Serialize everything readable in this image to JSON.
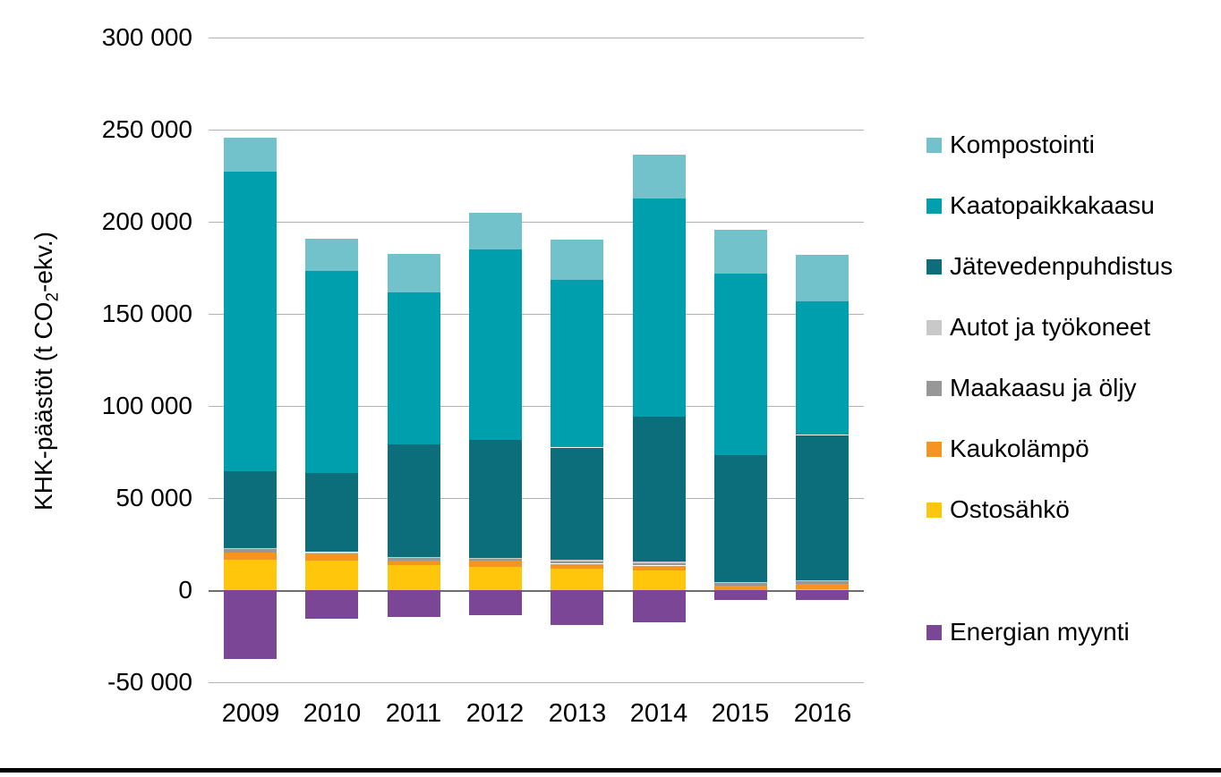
{
  "chart_data": {
    "type": "bar",
    "stacked": true,
    "title": "",
    "xlabel": "",
    "ylabel": "KHK-päästöt (t CO₂-ekv.)",
    "ylabel_parts": {
      "prefix": "KHK-päästöt (t CO",
      "sub": "2",
      "suffix": "-ekv.)"
    },
    "categories": [
      "2009",
      "2010",
      "2011",
      "2012",
      "2013",
      "2014",
      "2015",
      "2016"
    ],
    "series": [
      {
        "name": "Ostosähkö",
        "color": "#FFC60B",
        "values": [
          16700,
          15800,
          13800,
          12400,
          11900,
          10900,
          400,
          500
        ]
      },
      {
        "name": "Kaukolämpö",
        "color": "#F5941F",
        "values": [
          3900,
          4000,
          2400,
          3400,
          2400,
          2400,
          2200,
          2700
        ]
      },
      {
        "name": "Maakaasu ja öljy",
        "color": "#979797",
        "values": [
          1700,
          500,
          1300,
          1000,
          1600,
          1600,
          1300,
          1600
        ]
      },
      {
        "name": "Autot ja työkoneet",
        "color": "#C9C9C9",
        "values": [
          700,
          300,
          600,
          500,
          800,
          800,
          600,
          800
        ]
      },
      {
        "name": "Jätevedenpuhdistus",
        "color": "#0D6E7B",
        "values": [
          41700,
          42800,
          61200,
          64100,
          60700,
          78600,
          68900,
          78600
        ]
      },
      {
        "name": "Kaatopaikkakaasu",
        "color": "#009FAE",
        "values": [
          162600,
          110200,
          82500,
          103400,
          91300,
          118500,
          98600,
          72400
        ]
      },
      {
        "name": "Kompostointi",
        "color": "#72C2CC",
        "values": [
          18500,
          17400,
          20800,
          19900,
          21800,
          23700,
          23800,
          25200
        ]
      },
      {
        "name": "Energian myynti",
        "color": "#7C4696",
        "values": [
          -37600,
          -15400,
          -14600,
          -13500,
          -18700,
          -17600,
          -5400,
          -5200
        ]
      }
    ],
    "legend": [
      {
        "label": "Kompostointi",
        "color": "#72C2CC"
      },
      {
        "label": "Kaatopaikkakaasu",
        "color": "#009FAE"
      },
      {
        "label": "Jätevedenpuhdistus",
        "color": "#0D6E7B"
      },
      {
        "label": "Autot ja työkoneet",
        "color": "#C9C9C9"
      },
      {
        "label": "Maakaasu ja öljy",
        "color": "#979797"
      },
      {
        "label": "Kaukolämpö",
        "color": "#F5941F"
      },
      {
        "label": "Ostosähkö",
        "color": "#FFC60B"
      },
      {
        "label": "Energian myynti",
        "color": "#7C4696"
      }
    ],
    "legend_position": "right",
    "grid": true,
    "y_axis": {
      "min": -50000,
      "max": 300000,
      "step": 50000,
      "ticks": [
        {
          "value": 300000,
          "label": "300 000"
        },
        {
          "value": 250000,
          "label": "250 000"
        },
        {
          "value": 200000,
          "label": "200 000"
        },
        {
          "value": 150000,
          "label": "150 000"
        },
        {
          "value": 100000,
          "label": "100 000"
        },
        {
          "value": 50000,
          "label": "50 000"
        },
        {
          "value": 0,
          "label": "0"
        },
        {
          "value": -50000,
          "label": "-50 000"
        }
      ]
    }
  }
}
